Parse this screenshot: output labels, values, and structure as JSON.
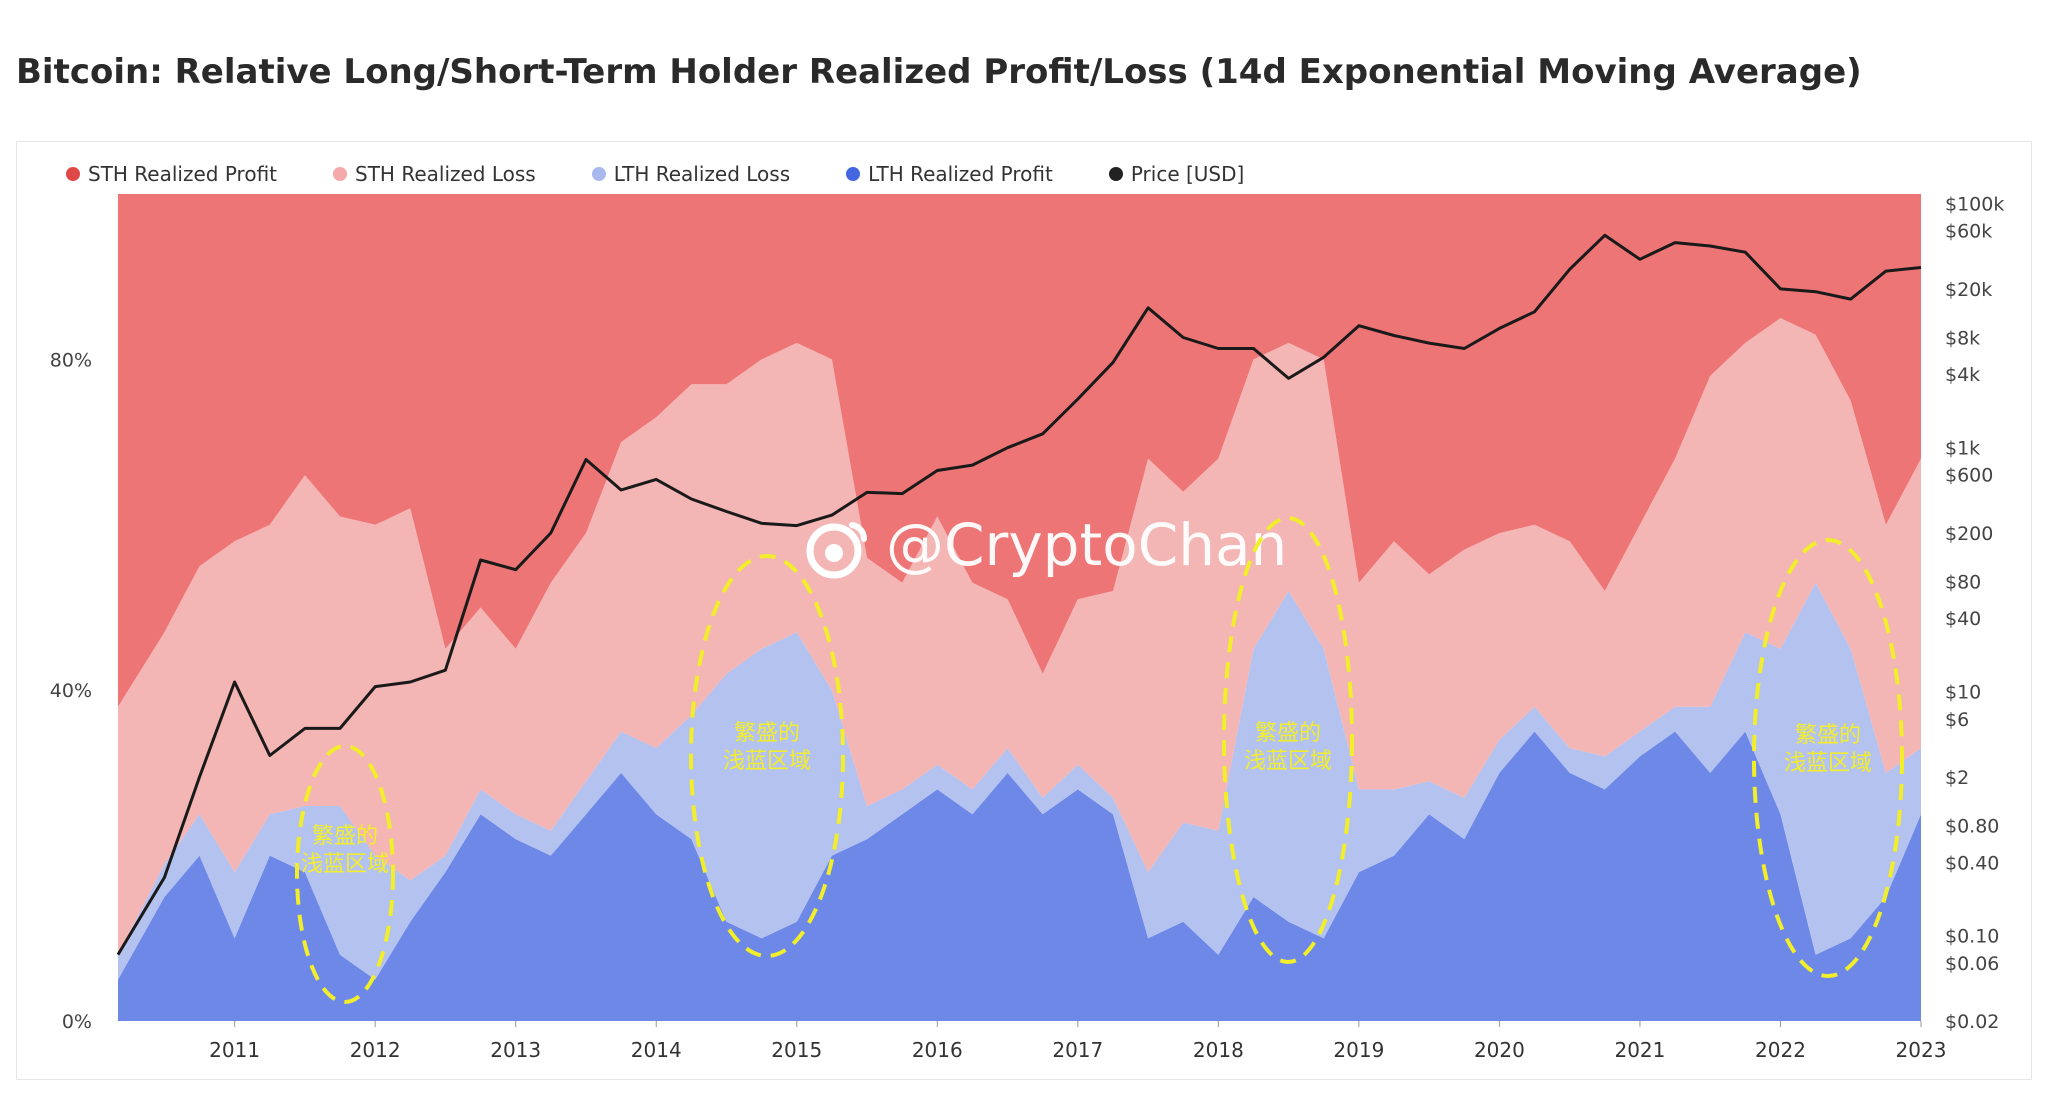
{
  "title": "Bitcoin: Relative Long/Short-Term Holder Realized Profit/Loss (14d Exponential Moving Average)",
  "watermark": "@CryptoChan",
  "annotations": [
    {
      "label_line1": "繁盛的",
      "label_line2": "浅蓝区域"
    },
    {
      "label_line1": "繁盛的",
      "label_line2": "浅蓝区域"
    },
    {
      "label_line1": "繁盛的",
      "label_line2": "浅蓝区域"
    },
    {
      "label_line1": "繁盛的",
      "label_line2": "浅蓝区域"
    }
  ],
  "colors": {
    "sth_profit": "#ee7575",
    "sth_loss": "#f4b5b5",
    "lth_loss": "#b4c2ef",
    "lth_profit": "#6e88e8",
    "price": "#1a1a1a",
    "annotation": "#f2ee2a"
  },
  "chart_data": {
    "type": "area",
    "stacked_percent": true,
    "legend": [
      {
        "name": "STH Realized Profit",
        "color": "#e04848"
      },
      {
        "name": "STH Realized Loss",
        "color": "#f4aaaa"
      },
      {
        "name": "LTH Realized Loss",
        "color": "#a9b8ef"
      },
      {
        "name": "LTH Realized Profit",
        "color": "#4466e0"
      },
      {
        "name": "Price [USD]",
        "color": "#222222"
      }
    ],
    "legend_position": "top-left",
    "x_ticks": [
      "2011",
      "2012",
      "2013",
      "2014",
      "2015",
      "2016",
      "2017",
      "2018",
      "2019",
      "2020",
      "2021",
      "2022",
      "2023"
    ],
    "x_range": [
      2010.67,
      2023.5
    ],
    "y_left_ticks": [
      "0%",
      "40%",
      "80%"
    ],
    "y_left_range": [
      0,
      100
    ],
    "y_right_ticks": [
      "$0.02",
      "$0.06",
      "$0.10",
      "$0.40",
      "$0.80",
      "$2",
      "$6",
      "$10",
      "$40",
      "$80",
      "$200",
      "$600",
      "$1k",
      "$4k",
      "$8k",
      "$20k",
      "$60k",
      "$100k"
    ],
    "y_right_scale": "log",
    "y_right_range": [
      0.02,
      120000
    ],
    "x": [
      2010.67,
      2011.0,
      2011.25,
      2011.5,
      2011.75,
      2012.0,
      2012.25,
      2012.5,
      2012.75,
      2013.0,
      2013.25,
      2013.5,
      2013.75,
      2014.0,
      2014.25,
      2014.5,
      2014.75,
      2015.0,
      2015.25,
      2015.5,
      2015.75,
      2016.0,
      2016.25,
      2016.5,
      2016.75,
      2017.0,
      2017.25,
      2017.5,
      2017.75,
      2018.0,
      2018.25,
      2018.5,
      2018.75,
      2019.0,
      2019.25,
      2019.5,
      2019.75,
      2020.0,
      2020.25,
      2020.5,
      2020.75,
      2021.0,
      2021.25,
      2021.5,
      2021.75,
      2022.0,
      2022.25,
      2022.5,
      2022.75,
      2023.0,
      2023.25,
      2023.5
    ],
    "series": [
      {
        "name": "LTH Realized Profit",
        "values": [
          5,
          15,
          20,
          10,
          20,
          18,
          8,
          5,
          12,
          18,
          25,
          22,
          20,
          25,
          30,
          25,
          22,
          12,
          10,
          12,
          20,
          22,
          25,
          28,
          25,
          30,
          25,
          28,
          25,
          10,
          12,
          8,
          15,
          12,
          10,
          18,
          20,
          25,
          22,
          30,
          35,
          30,
          28,
          32,
          35,
          30,
          35,
          25,
          8,
          10,
          15,
          25
        ]
      },
      {
        "name": "LTH Realized Loss",
        "values": [
          3,
          4,
          5,
          8,
          5,
          8,
          18,
          15,
          5,
          2,
          3,
          3,
          3,
          4,
          5,
          8,
          15,
          30,
          35,
          35,
          20,
          4,
          3,
          3,
          3,
          3,
          2,
          3,
          2,
          8,
          12,
          15,
          30,
          40,
          35,
          10,
          8,
          4,
          5,
          4,
          3,
          3,
          4,
          3,
          3,
          8,
          12,
          20,
          45,
          35,
          15,
          8
        ]
      },
      {
        "name": "STH Realized Loss",
        "values": [
          30,
          28,
          30,
          40,
          35,
          40,
          35,
          40,
          45,
          25,
          22,
          20,
          30,
          30,
          35,
          40,
          40,
          35,
          35,
          35,
          40,
          30,
          25,
          30,
          25,
          18,
          15,
          20,
          25,
          50,
          40,
          45,
          35,
          30,
          35,
          25,
          30,
          25,
          30,
          25,
          22,
          25,
          20,
          25,
          30,
          40,
          35,
          40,
          30,
          30,
          30,
          35
        ]
      },
      {
        "name": "STH Realized Profit",
        "values": [
          62,
          53,
          45,
          42,
          40,
          34,
          39,
          40,
          38,
          55,
          50,
          55,
          47,
          41,
          30,
          27,
          23,
          23,
          20,
          18,
          20,
          44,
          47,
          39,
          47,
          49,
          58,
          49,
          48,
          32,
          36,
          32,
          20,
          18,
          20,
          47,
          42,
          46,
          43,
          41,
          40,
          42,
          48,
          40,
          32,
          22,
          18,
          15,
          17,
          25,
          40,
          32
        ]
      },
      {
        "name": "Price [USD]",
        "values": [
          0.07,
          0.3,
          2,
          12,
          3,
          5,
          5,
          11,
          12,
          15,
          120,
          100,
          200,
          800,
          450,
          550,
          380,
          300,
          240,
          230,
          280,
          430,
          420,
          650,
          720,
          1000,
          1300,
          2500,
          5000,
          14000,
          8000,
          6500,
          6500,
          3700,
          5500,
          10000,
          8300,
          7200,
          6500,
          9500,
          13000,
          29000,
          55000,
          35000,
          48000,
          45000,
          40000,
          20000,
          19000,
          16500,
          28000,
          30000
        ]
      }
    ]
  }
}
